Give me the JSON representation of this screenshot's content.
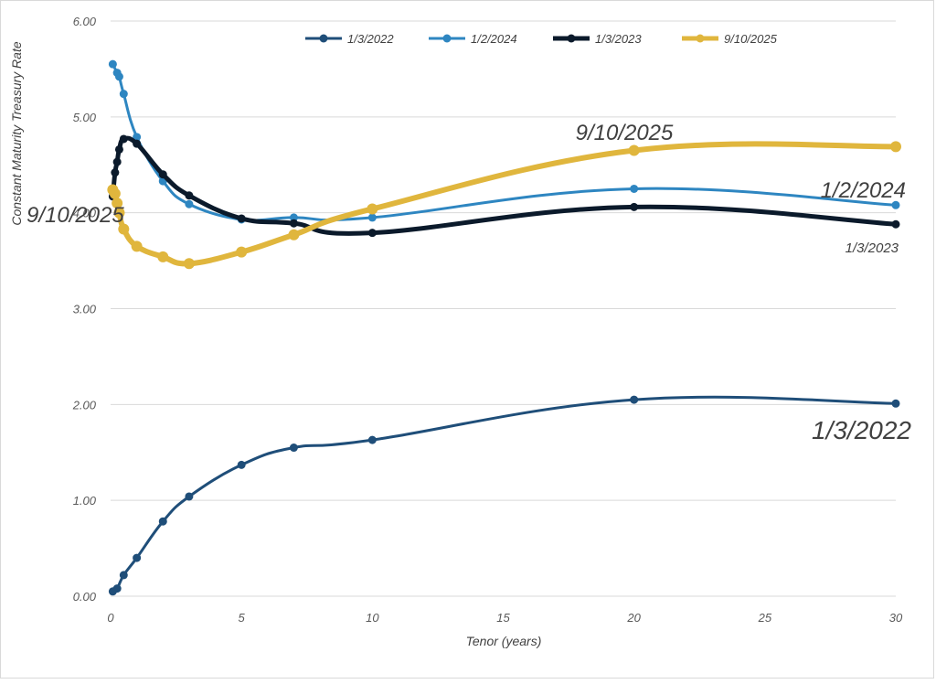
{
  "chart_data": {
    "type": "line",
    "title": "",
    "xlabel": "Tenor (years)",
    "ylabel": "Constant Maturity Treasury Rate",
    "xlim": [
      0,
      30
    ],
    "ylim": [
      0,
      6
    ],
    "x_ticks": [
      "0",
      "5",
      "10",
      "15",
      "20",
      "25",
      "30"
    ],
    "y_ticks": [
      "0.00",
      "1.00",
      "2.00",
      "3.00",
      "4.00",
      "5.00",
      "6.00"
    ],
    "grid": "horizontal",
    "legend": "top-right",
    "series": [
      {
        "name": "1/3/2022",
        "color": "#1f4e79",
        "x": [
          0.083,
          0.25,
          0.5,
          1,
          2,
          3,
          5,
          7,
          10,
          20,
          30
        ],
        "y": [
          0.05,
          0.08,
          0.22,
          0.4,
          0.78,
          1.04,
          1.37,
          1.55,
          1.63,
          2.05,
          2.01
        ]
      },
      {
        "name": "1/2/2024",
        "color": "#2e86c1",
        "x": [
          0.083,
          0.25,
          0.33,
          0.5,
          1,
          2,
          3,
          5,
          7,
          10,
          20,
          30
        ],
        "y": [
          5.55,
          5.46,
          5.42,
          5.24,
          4.79,
          4.33,
          4.09,
          3.93,
          3.95,
          3.95,
          4.25,
          4.08
        ]
      },
      {
        "name": "1/3/2023",
        "color": "#0b1a2b",
        "x": [
          0.083,
          0.17,
          0.25,
          0.33,
          0.5,
          1,
          2,
          3,
          5,
          7,
          10,
          20,
          30
        ],
        "y": [
          4.17,
          4.42,
          4.53,
          4.66,
          4.77,
          4.72,
          4.4,
          4.18,
          3.94,
          3.89,
          3.79,
          4.06,
          3.88
        ]
      },
      {
        "name": "9/10/2025",
        "color": "#e0b63d",
        "x": [
          0.083,
          0.17,
          0.25,
          0.33,
          0.5,
          1,
          2,
          3,
          5,
          7,
          10,
          20,
          30
        ],
        "y": [
          4.24,
          4.2,
          4.1,
          4.0,
          3.83,
          3.65,
          3.54,
          3.47,
          3.59,
          3.77,
          4.04,
          4.65,
          4.69
        ]
      }
    ],
    "annotations": [
      {
        "text": "9/10/2025",
        "series": "9/10/2025"
      },
      {
        "text": "9/10/2025",
        "series": "9/10/2025"
      },
      {
        "text": "1/2/2024",
        "series": "1/2/2024"
      },
      {
        "text": "1/3/2023",
        "series": "1/3/2023"
      },
      {
        "text": "1/3/2022",
        "series": "1/3/2022"
      }
    ]
  }
}
